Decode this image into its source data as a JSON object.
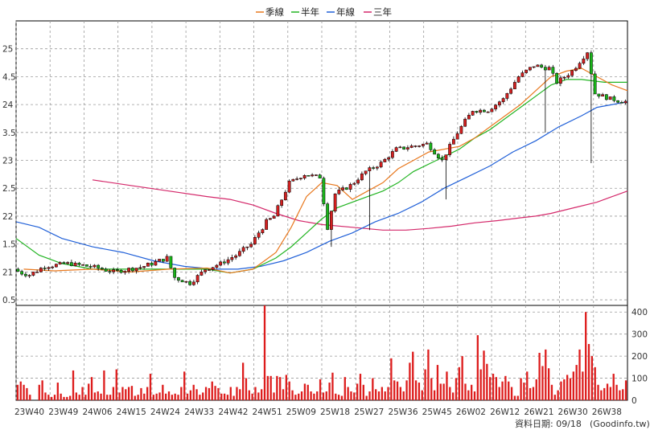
{
  "legend": [
    {
      "label": "季線",
      "color": "#e8781e"
    },
    {
      "label": "半年",
      "color": "#22b422"
    },
    {
      "label": "年線",
      "color": "#2060d8"
    },
    {
      "label": "三年",
      "color": "#d4286a"
    }
  ],
  "footer": {
    "label": "資料日期: 09/18",
    "source": "(Goodinfo.tw)"
  },
  "colors": {
    "up": "#d42020",
    "down": "#1ab41a",
    "volume": "#dd1c1c",
    "grid": "#9a9a9a"
  },
  "chart_data": [
    {
      "type": "candlestick",
      "title": "",
      "price_axis_labels": [
        "25",
        "4.5",
        "24",
        "3.5",
        "23",
        "2.5",
        "22",
        "1.5",
        "21",
        "0.5"
      ],
      "ylim": [
        20.4,
        25.5
      ],
      "xlim": [
        0,
        160
      ],
      "x_tick_labels": [
        "23W40",
        "23W49",
        "24W06",
        "24W15",
        "24W24",
        "24W33",
        "24W42",
        "24W51",
        "25W09",
        "25W18",
        "25W27",
        "25W36",
        "25W45",
        "26W02",
        "26W12",
        "26W21",
        "26W30",
        "26W38"
      ],
      "candles": [],
      "quarter_ma": [
        [
          2,
          21.05
        ],
        [
          10,
          21.02
        ],
        [
          20,
          21.05
        ],
        [
          30,
          21.0
        ],
        [
          40,
          21.05
        ],
        [
          50,
          21.07
        ],
        [
          56,
          20.98
        ],
        [
          62,
          21.05
        ],
        [
          68,
          21.35
        ],
        [
          72,
          21.8
        ],
        [
          76,
          22.35
        ],
        [
          80,
          22.6
        ],
        [
          84,
          22.55
        ],
        [
          88,
          22.3
        ],
        [
          92,
          22.45
        ],
        [
          96,
          22.6
        ],
        [
          100,
          22.85
        ],
        [
          104,
          23.0
        ],
        [
          108,
          23.15
        ],
        [
          116,
          23.25
        ],
        [
          120,
          23.4
        ],
        [
          124,
          23.6
        ],
        [
          128,
          23.8
        ],
        [
          132,
          24.0
        ],
        [
          136,
          24.25
        ],
        [
          140,
          24.5
        ],
        [
          144,
          24.6
        ],
        [
          148,
          24.65
        ],
        [
          152,
          24.5
        ],
        [
          156,
          24.35
        ],
        [
          160,
          24.25
        ]
      ],
      "halfyear_ma": [
        [
          0,
          21.6
        ],
        [
          6,
          21.3
        ],
        [
          12,
          21.15
        ],
        [
          20,
          21.05
        ],
        [
          30,
          21.05
        ],
        [
          40,
          21.05
        ],
        [
          50,
          21.05
        ],
        [
          56,
          20.98
        ],
        [
          62,
          21.05
        ],
        [
          68,
          21.25
        ],
        [
          72,
          21.45
        ],
        [
          76,
          21.7
        ],
        [
          80,
          21.95
        ],
        [
          84,
          22.15
        ],
        [
          88,
          22.25
        ],
        [
          92,
          22.35
        ],
        [
          96,
          22.45
        ],
        [
          100,
          22.6
        ],
        [
          104,
          22.8
        ],
        [
          110,
          23.0
        ],
        [
          116,
          23.2
        ],
        [
          120,
          23.4
        ],
        [
          124,
          23.55
        ],
        [
          128,
          23.75
        ],
        [
          132,
          23.95
        ],
        [
          136,
          24.15
        ],
        [
          140,
          24.35
        ],
        [
          144,
          24.45
        ],
        [
          148,
          24.45
        ],
        [
          154,
          24.4
        ],
        [
          160,
          24.4
        ]
      ],
      "year_ma": [
        [
          0,
          21.9
        ],
        [
          6,
          21.8
        ],
        [
          12,
          21.6
        ],
        [
          20,
          21.45
        ],
        [
          28,
          21.35
        ],
        [
          36,
          21.2
        ],
        [
          44,
          21.1
        ],
        [
          52,
          21.05
        ],
        [
          58,
          21.05
        ],
        [
          64,
          21.1
        ],
        [
          70,
          21.2
        ],
        [
          76,
          21.35
        ],
        [
          82,
          21.55
        ],
        [
          88,
          21.7
        ],
        [
          94,
          21.9
        ],
        [
          100,
          22.05
        ],
        [
          106,
          22.25
        ],
        [
          112,
          22.5
        ],
        [
          118,
          22.7
        ],
        [
          124,
          22.9
        ],
        [
          130,
          23.15
        ],
        [
          136,
          23.35
        ],
        [
          142,
          23.6
        ],
        [
          148,
          23.8
        ],
        [
          152,
          23.95
        ],
        [
          156,
          24.0
        ],
        [
          160,
          24.05
        ]
      ],
      "threeyear_ma": [
        [
          20,
          22.65
        ],
        [
          30,
          22.55
        ],
        [
          40,
          22.45
        ],
        [
          50,
          22.35
        ],
        [
          56,
          22.3
        ],
        [
          62,
          22.2
        ],
        [
          68,
          22.05
        ],
        [
          74,
          21.92
        ],
        [
          80,
          21.85
        ],
        [
          88,
          21.8
        ],
        [
          96,
          21.75
        ],
        [
          102,
          21.75
        ],
        [
          108,
          21.78
        ],
        [
          114,
          21.82
        ],
        [
          120,
          21.88
        ],
        [
          126,
          21.92
        ],
        [
          132,
          21.97
        ],
        [
          136,
          22.0
        ],
        [
          140,
          22.05
        ],
        [
          146,
          22.15
        ],
        [
          152,
          22.25
        ],
        [
          156,
          22.35
        ],
        [
          160,
          22.45
        ]
      ],
      "volume_axis_labels": [
        "400",
        "300",
        "200",
        "100",
        "0"
      ],
      "volume_ylim": [
        0,
        430
      ],
      "volume": [
        70,
        85,
        70,
        55,
        25,
        0,
        0,
        70,
        90,
        35,
        25,
        15,
        25,
        80,
        30,
        15,
        15,
        20,
        135,
        35,
        25,
        60,
        25,
        75,
        105,
        35,
        40,
        30,
        135,
        25,
        25,
        60,
        140,
        35,
        60,
        50,
        60,
        65,
        20,
        25,
        55,
        30,
        60,
        120,
        25,
        30,
        35,
        70,
        30,
        40,
        25,
        30,
        25,
        60,
        130,
        30,
        45,
        70,
        50,
        25,
        35,
        60,
        55,
        85,
        65,
        55,
        30,
        30,
        25,
        60,
        20,
        60,
        50,
        170,
        100,
        45,
        30,
        60,
        35,
        50,
        430,
        110,
        110,
        35,
        110,
        105,
        50,
        115,
        85,
        45,
        25,
        30,
        40,
        75,
        70,
        40,
        30,
        40,
        95,
        35,
        40,
        80,
        125,
        30,
        25,
        20,
        105,
        60,
        40,
        35,
        75,
        120,
        70,
        20,
        40,
        100,
        50,
        40,
        60,
        40,
        60,
        190,
        90,
        85,
        60,
        40,
        90,
        170,
        220,
        90,
        80,
        45,
        140,
        230,
        100,
        45,
        160,
        75,
        75,
        130,
        60,
        35,
        100,
        150,
        200,
        75,
        45,
        70,
        40,
        295,
        140,
        225,
        165,
        105,
        120,
        105,
        60,
        85,
        110,
        85,
        60,
        20,
        20,
        100,
        80,
        130,
        55,
        60,
        95,
        215,
        155,
        230,
        145,
        70,
        25,
        45,
        85,
        95,
        115,
        100,
        130,
        160,
        230,
        130,
        400,
        255,
        200,
        150,
        70,
        45,
        55,
        75,
        60,
        120,
        70,
        45,
        50,
        90
      ]
    }
  ]
}
